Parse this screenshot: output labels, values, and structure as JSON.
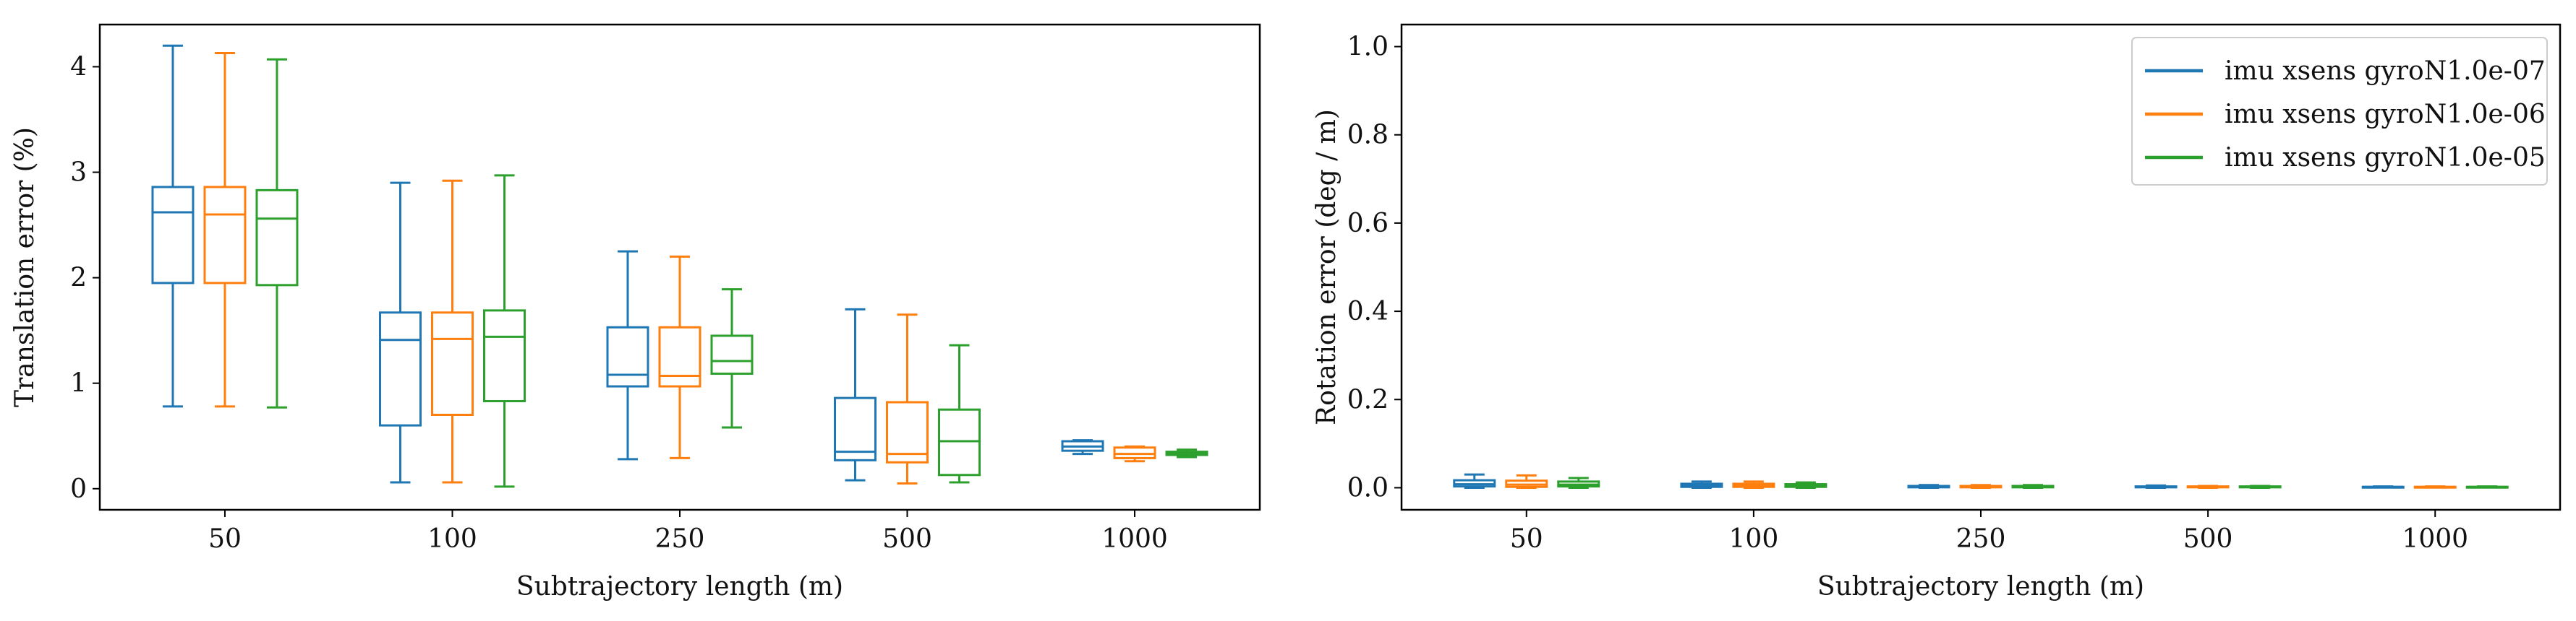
{
  "colors": {
    "gyroN1.0e-07": "#1f77b4",
    "gyroN1.0e-06": "#ff7f0e",
    "gyroN1.0e-05": "#2ca02c"
  },
  "chart_data": [
    {
      "type": "box",
      "xlabel": "Subtrajectory length (m)",
      "ylabel": "Translation error (%)",
      "categories": [
        "50",
        "100",
        "250",
        "500",
        "1000"
      ],
      "ylim": [
        -0.2,
        4.4
      ],
      "yticks": [
        0,
        1,
        2,
        3,
        4
      ],
      "grid": false,
      "series": [
        {
          "name": "imu xsens gyroN1.0e-07",
          "color": "#1f77b4",
          "boxes": [
            {
              "whislo": 0.78,
              "q1": 1.95,
              "med": 2.62,
              "q3": 2.86,
              "whishi": 4.2
            },
            {
              "whislo": 0.06,
              "q1": 0.6,
              "med": 1.41,
              "q3": 1.67,
              "whishi": 2.9
            },
            {
              "whislo": 0.28,
              "q1": 0.97,
              "med": 1.08,
              "q3": 1.53,
              "whishi": 2.25
            },
            {
              "whislo": 0.08,
              "q1": 0.27,
              "med": 0.35,
              "q3": 0.86,
              "whishi": 1.7
            },
            {
              "whislo": 0.33,
              "q1": 0.36,
              "med": 0.4,
              "q3": 0.45,
              "whishi": 0.46
            }
          ]
        },
        {
          "name": "imu xsens gyroN1.0e-06",
          "color": "#ff7f0e",
          "boxes": [
            {
              "whislo": 0.78,
              "q1": 1.95,
              "med": 2.6,
              "q3": 2.86,
              "whishi": 4.13
            },
            {
              "whislo": 0.06,
              "q1": 0.7,
              "med": 1.42,
              "q3": 1.67,
              "whishi": 2.92
            },
            {
              "whislo": 0.29,
              "q1": 0.97,
              "med": 1.07,
              "q3": 1.53,
              "whishi": 2.2
            },
            {
              "whislo": 0.05,
              "q1": 0.25,
              "med": 0.33,
              "q3": 0.82,
              "whishi": 1.65
            },
            {
              "whislo": 0.26,
              "q1": 0.29,
              "med": 0.33,
              "q3": 0.39,
              "whishi": 0.4
            }
          ]
        },
        {
          "name": "imu xsens gyroN1.0e-05",
          "color": "#2ca02c",
          "boxes": [
            {
              "whislo": 0.77,
              "q1": 1.93,
              "med": 2.56,
              "q3": 2.83,
              "whishi": 4.07
            },
            {
              "whislo": 0.02,
              "q1": 0.83,
              "med": 1.44,
              "q3": 1.69,
              "whishi": 2.97
            },
            {
              "whislo": 0.58,
              "q1": 1.09,
              "med": 1.21,
              "q3": 1.45,
              "whishi": 1.89
            },
            {
              "whislo": 0.06,
              "q1": 0.13,
              "med": 0.45,
              "q3": 0.75,
              "whishi": 1.36
            },
            {
              "whislo": 0.3,
              "q1": 0.32,
              "med": 0.34,
              "q3": 0.35,
              "whishi": 0.37
            }
          ]
        }
      ]
    },
    {
      "type": "box",
      "xlabel": "Subtrajectory length (m)",
      "ylabel": "Rotation error (deg / m)",
      "categories": [
        "50",
        "100",
        "250",
        "500",
        "1000"
      ],
      "ylim": [
        -0.05,
        1.05
      ],
      "yticks": [
        "0.0",
        "0.2",
        "0.4",
        "0.6",
        "0.8",
        "1.0"
      ],
      "grid": false,
      "legend": {
        "placement": "top-right",
        "entries": [
          "imu xsens gyroN1.0e-07",
          "imu xsens gyroN1.0e-06",
          "imu xsens gyroN1.0e-05"
        ]
      },
      "series": [
        {
          "name": "imu xsens gyroN1.0e-07",
          "color": "#1f77b4",
          "boxes": [
            {
              "whislo": 0.0,
              "q1": 0.003,
              "med": 0.008,
              "q3": 0.017,
              "whishi": 0.03
            },
            {
              "whislo": 0.0,
              "q1": 0.002,
              "med": 0.005,
              "q3": 0.009,
              "whishi": 0.014
            },
            {
              "whislo": 0.0,
              "q1": 0.001,
              "med": 0.003,
              "q3": 0.004,
              "whishi": 0.006
            },
            {
              "whislo": 0.0,
              "q1": 0.001,
              "med": 0.002,
              "q3": 0.003,
              "whishi": 0.005
            },
            {
              "whislo": 0.001,
              "q1": 0.001,
              "med": 0.002,
              "q3": 0.002,
              "whishi": 0.003
            }
          ]
        },
        {
          "name": "imu xsens gyroN1.0e-06",
          "color": "#ff7f0e",
          "boxes": [
            {
              "whislo": 0.0,
              "q1": 0.002,
              "med": 0.007,
              "q3": 0.016,
              "whishi": 0.028
            },
            {
              "whislo": 0.0,
              "q1": 0.002,
              "med": 0.005,
              "q3": 0.009,
              "whishi": 0.014
            },
            {
              "whislo": 0.0,
              "q1": 0.001,
              "med": 0.003,
              "q3": 0.004,
              "whishi": 0.006
            },
            {
              "whislo": 0.0,
              "q1": 0.001,
              "med": 0.002,
              "q3": 0.003,
              "whishi": 0.004
            },
            {
              "whislo": 0.001,
              "q1": 0.001,
              "med": 0.002,
              "q3": 0.002,
              "whishi": 0.003
            }
          ]
        },
        {
          "name": "imu xsens gyroN1.0e-05",
          "color": "#2ca02c",
          "boxes": [
            {
              "whislo": 0.0,
              "q1": 0.003,
              "med": 0.007,
              "q3": 0.014,
              "whishi": 0.022
            },
            {
              "whislo": 0.0,
              "q1": 0.002,
              "med": 0.005,
              "q3": 0.008,
              "whishi": 0.012
            },
            {
              "whislo": 0.0,
              "q1": 0.001,
              "med": 0.003,
              "q3": 0.004,
              "whishi": 0.006
            },
            {
              "whislo": 0.0,
              "q1": 0.001,
              "med": 0.002,
              "q3": 0.003,
              "whishi": 0.004
            },
            {
              "whislo": 0.001,
              "q1": 0.001,
              "med": 0.002,
              "q3": 0.002,
              "whishi": 0.003
            }
          ]
        }
      ]
    }
  ]
}
